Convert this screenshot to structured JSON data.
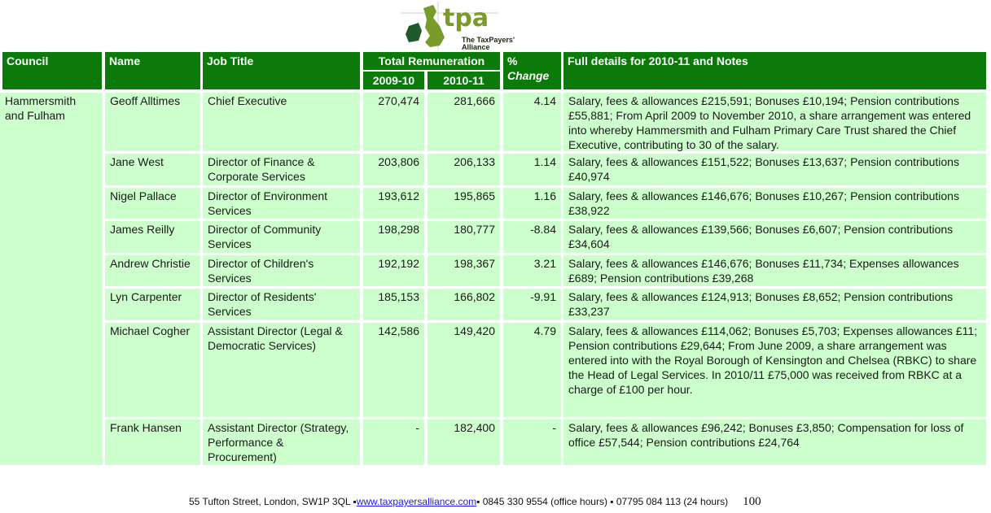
{
  "logo": {
    "text": "tpa",
    "subtitle_line1": "The TaxPayers'",
    "subtitle_line2": "Alliance"
  },
  "header": {
    "council": "Council",
    "name": "Name",
    "job_title": "Job Title",
    "total_remuneration": "Total Remuneration",
    "year1": "2009-10",
    "year2": "2010-11",
    "pct": "%",
    "change": "Change",
    "details": "Full details for 2010-11 and Notes"
  },
  "council": "Hammersmith and Fulham",
  "rows": [
    {
      "name": "Geoff Alltimes",
      "job": "Chief Executive",
      "y1": "270,474",
      "y2": "281,666",
      "chg": "4.14",
      "details": "Salary, fees & allowances £215,591; Bonuses £10,194; Pension contributions £55,881; From April 2009 to November 2010, a share arrangement was entered into whereby Hammersmith and Fulham Primary Care Trust shared the Chief Executive, contributing to 30 of the salary."
    },
    {
      "name": "Jane West",
      "job": "Director of Finance & Corporate Services",
      "y1": "203,806",
      "y2": "206,133",
      "chg": "1.14",
      "details": "Salary, fees & allowances £151,522; Bonuses £13,637; Pension contributions £40,974"
    },
    {
      "name": "Nigel Pallace",
      "job": "Director of Environment Services",
      "y1": "193,612",
      "y2": "195,865",
      "chg": "1.16",
      "details": "Salary, fees & allowances £146,676; Bonuses £10,267; Pension contributions £38,922"
    },
    {
      "name": "James Reilly",
      "job": "Director of Community Services",
      "y1": "198,298",
      "y2": "180,777",
      "chg": "-8.84",
      "details": "Salary, fees & allowances £139,566; Bonuses £6,607; Pension contributions £34,604"
    },
    {
      "name": "Andrew Christie",
      "job": "Director of Children's Services",
      "y1": "192,192",
      "y2": "198,367",
      "chg": "3.21",
      "details": "Salary, fees & allowances £146,676; Bonuses £11,734; Expenses allowances £689; Pension contributions £39,268"
    },
    {
      "name": "Lyn Carpenter",
      "job": "Director of Residents' Services",
      "y1": "185,153",
      "y2": "166,802",
      "chg": "-9.91",
      "details": "Salary, fees & allowances £124,913; Bonuses £8,652; Pension contributions £33,237"
    },
    {
      "name": "Michael Cogher",
      "job": "Assistant Director (Legal & Democratic Services)",
      "y1": "142,586",
      "y2": "149,420",
      "chg": "4.79",
      "details": "Salary, fees & allowances £114,062; Bonuses £5,703; Expenses allowances £11; Pension contributions £29,644; From June 2009, a share arrangement was entered into with the Royal Borough of Kensington and Chelsea (RBKC) to share the Head of Legal Services. In 2010/11 £75,000 was received from RBKC at a charge of £100 per hour."
    },
    {
      "name": "Frank Hansen",
      "job": "Assistant Director (Strategy, Performance & Procurement)",
      "y1": "-",
      "y2": "182,400",
      "chg": "-",
      "details": "Salary, fees & allowances £96,242; Bonuses £3,850; Compensation for loss of office £57,544; Pension contributions £24,764"
    }
  ],
  "footer": {
    "address": "55 Tufton Street, London, SW1P 3QL ▪ ",
    "website": "www.taxpayersalliance.com",
    "phones": " ▪ 0845 330 9554 (office hours) ▪ 07795 084 113 (24 hours)",
    "page_number": "100"
  },
  "colors": {
    "header_bg": "#0b7a0b",
    "cell_bg": "#ccffcc",
    "logo_green": "#7a9a2a",
    "logo_dark": "#1f5a2a"
  }
}
